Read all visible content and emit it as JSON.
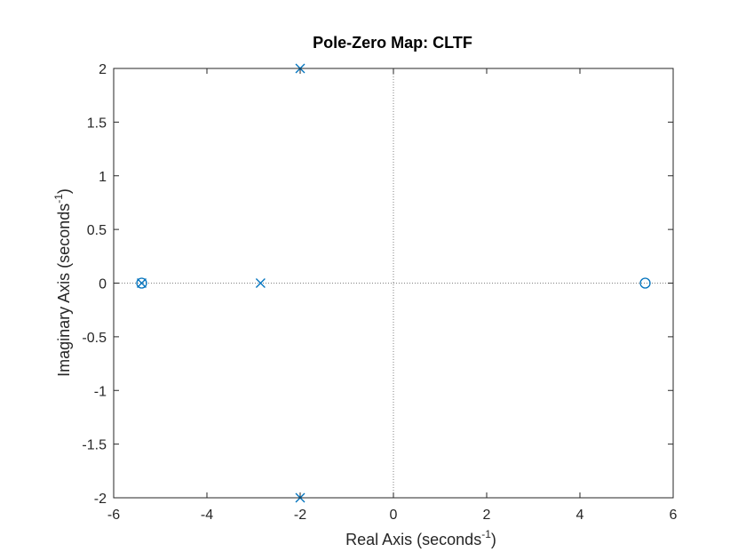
{
  "chart_data": {
    "type": "scatter",
    "title": "Pole-Zero Map: CLTF",
    "xlabel": {
      "main": "Real Axis (seconds",
      "sup": "-1",
      "close": ")"
    },
    "ylabel": {
      "main": "Imaginary Axis (seconds",
      "sup": "-1",
      "close": ")"
    },
    "xlim": [
      -6,
      6
    ],
    "ylim": [
      -2,
      2
    ],
    "xticks": [
      -6,
      -4,
      -2,
      0,
      2,
      4,
      6
    ],
    "yticks": [
      -2,
      -1.5,
      -1,
      -0.5,
      0,
      0.5,
      1,
      1.5,
      2
    ],
    "xtick_labels": [
      "-6",
      "-4",
      "-2",
      "0",
      "2",
      "4",
      "6"
    ],
    "ytick_labels": [
      "-2",
      "-1.5",
      "-1",
      "-0.5",
      "0",
      "0.5",
      "1",
      "1.5",
      "2"
    ],
    "grid": false,
    "series": [
      {
        "marker": "x",
        "points": [
          [
            -2,
            2
          ],
          [
            -2,
            -2
          ],
          [
            -2.85,
            0
          ],
          [
            -5.4,
            0
          ]
        ]
      },
      {
        "marker": "o",
        "points": [
          [
            -5.4,
            0
          ],
          [
            5.4,
            0
          ]
        ]
      }
    ],
    "colors": {
      "marker": "#0072bd",
      "axis": "#262626",
      "reference": "#808080"
    }
  }
}
